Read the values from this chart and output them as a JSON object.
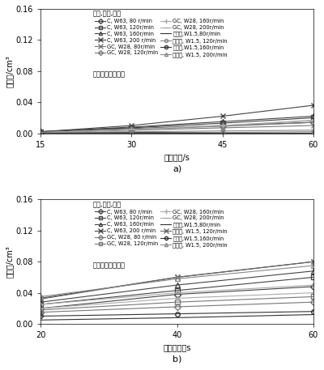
{
  "chart_a": {
    "title": "磨料,粒度,转速",
    "xlabel": "研磨时间/s",
    "ylabel": "研磨量/cm³",
    "workpiece": "工件材料：氧化铝",
    "xdata": [
      15,
      30,
      45,
      60
    ],
    "ylim": [
      0,
      0.16
    ],
    "yticks": [
      0.0,
      0.04,
      0.08,
      0.12,
      0.16
    ],
    "xlim": [
      15,
      60
    ],
    "xticks": [
      15,
      30,
      45,
      60
    ],
    "series": [
      {
        "label": "C, W63, 80 r/min",
        "y": [
          0.002,
          0.006,
          0.01,
          0.014
        ],
        "color": "#444444",
        "marker": "D",
        "ms": 4,
        "lw": 0.8,
        "mfc": "none"
      },
      {
        "label": "C, W63, 120r/min",
        "y": [
          0.002,
          0.007,
          0.013,
          0.02
        ],
        "color": "#444444",
        "marker": "s",
        "ms": 4,
        "lw": 0.8,
        "mfc": "none"
      },
      {
        "label": "C, W63, 160r/min",
        "y": [
          0.002,
          0.008,
          0.015,
          0.022
        ],
        "color": "#444444",
        "marker": "^",
        "ms": 4,
        "lw": 0.8,
        "mfc": "none"
      },
      {
        "label": "C, W63, 200 r/min",
        "y": [
          0.002,
          0.01,
          0.022,
          0.036
        ],
        "color": "#444444",
        "marker": "x",
        "ms": 5,
        "lw": 0.8,
        "mfc": "none"
      },
      {
        "label": "GC, W28, 80r/min",
        "y": [
          0.001,
          0.004,
          0.007,
          0.01
        ],
        "color": "#777777",
        "marker": "x",
        "ms": 5,
        "lw": 0.8,
        "mfc": "none"
      },
      {
        "label": "GC, W28, 120r/min",
        "y": [
          0.001,
          0.005,
          0.009,
          0.014
        ],
        "color": "#777777",
        "marker": "D",
        "ms": 4,
        "lw": 0.8,
        "mfc": "none"
      },
      {
        "label": "GC, W28, 160r/min",
        "y": [
          0.001,
          0.005,
          0.01,
          0.016
        ],
        "color": "#aaaaaa",
        "marker": "+",
        "ms": 5,
        "lw": 0.8,
        "mfc": "none"
      },
      {
        "label": "GC, W28, 200r/min",
        "y": [
          0.001,
          0.005,
          0.01,
          0.017
        ],
        "color": "#aaaaaa",
        "marker": "_",
        "ms": 5,
        "lw": 0.8,
        "mfc": "none"
      },
      {
        "label": "金刚石,W1.5,80r/min",
        "y": [
          0.001,
          0.001,
          0.001,
          0.001
        ],
        "color": "#333333",
        "marker": "",
        "ms": 4,
        "lw": 0.8,
        "mfc": "none"
      },
      {
        "label": "金刚石, W1.5, 120r/min",
        "y": [
          0.001,
          0.001,
          0.001,
          0.002
        ],
        "color": "#888888",
        "marker": "o",
        "ms": 4,
        "lw": 0.8,
        "mfc": "none"
      },
      {
        "label": "金刚石,W1.5,160r/min",
        "y": [
          0.001,
          0.001,
          0.0,
          0.0
        ],
        "color": "#333333",
        "marker": "o",
        "ms": 4,
        "lw": 0.8,
        "mfc": "none"
      },
      {
        "label": "金刚石, W1.5, 200r/min",
        "y": [
          0.001,
          0.002,
          0.003,
          0.004
        ],
        "color": "#888888",
        "marker": "^",
        "ms": 4,
        "lw": 0.8,
        "mfc": "none"
      }
    ]
  },
  "chart_b": {
    "title": "磨料,粒度,转速",
    "xlabel": "研磨时间／s",
    "ylabel": "研磨量/cm³",
    "workpiece": "工件材料：钛酸钡",
    "xdata": [
      20,
      40,
      60
    ],
    "ylim": [
      0,
      0.16
    ],
    "yticks": [
      0.0,
      0.04,
      0.08,
      0.12,
      0.16
    ],
    "xlim": [
      20,
      60
    ],
    "xticks": [
      20,
      40,
      60
    ],
    "series": [
      {
        "label": "C, W63, 80 r/min",
        "y": [
          0.02,
          0.038,
          0.048
        ],
        "color": "#444444",
        "marker": "D",
        "ms": 4,
        "lw": 0.8,
        "mfc": "none"
      },
      {
        "label": "C, W63, 120r/min",
        "y": [
          0.025,
          0.043,
          0.06
        ],
        "color": "#444444",
        "marker": "s",
        "ms": 4,
        "lw": 0.8,
        "mfc": "none"
      },
      {
        "label": "C, W63, 160r/min",
        "y": [
          0.028,
          0.05,
          0.068
        ],
        "color": "#444444",
        "marker": "^",
        "ms": 4,
        "lw": 0.8,
        "mfc": "none"
      },
      {
        "label": "C, W63, 200 r/min",
        "y": [
          0.033,
          0.06,
          0.08
        ],
        "color": "#444444",
        "marker": "x",
        "ms": 5,
        "lw": 0.8,
        "mfc": "none"
      },
      {
        "label": "GC, W28, 80 r/min",
        "y": [
          0.015,
          0.022,
          0.028
        ],
        "color": "#777777",
        "marker": "D",
        "ms": 4,
        "lw": 0.8,
        "mfc": "none"
      },
      {
        "label": "GC, W28, 120r/min",
        "y": [
          0.018,
          0.028,
          0.035
        ],
        "color": "#777777",
        "marker": "s",
        "ms": 4,
        "lw": 0.8,
        "mfc": "none"
      },
      {
        "label": "GC, W28, 160r/min",
        "y": [
          0.02,
          0.033,
          0.04
        ],
        "color": "#aaaaaa",
        "marker": "+",
        "ms": 5,
        "lw": 0.8,
        "mfc": "none"
      },
      {
        "label": "GC, W28, 200r/min",
        "y": [
          0.025,
          0.04,
          0.05
        ],
        "color": "#aaaaaa",
        "marker": "_",
        "ms": 5,
        "lw": 0.8,
        "mfc": "none"
      },
      {
        "label": "金刚石,W1.5,80r/min",
        "y": [
          0.005,
          0.008,
          0.012
        ],
        "color": "#333333",
        "marker": "",
        "ms": 4,
        "lw": 0.8,
        "mfc": "none"
      },
      {
        "label": "金刚石, W1.5, 120r/min",
        "y": [
          0.032,
          0.06,
          0.08
        ],
        "color": "#666666",
        "marker": "x",
        "ms": 5,
        "lw": 0.8,
        "mfc": "none"
      },
      {
        "label": "金刚石,W1.5,160r/min",
        "y": [
          0.01,
          0.013,
          0.016
        ],
        "color": "#333333",
        "marker": "o",
        "ms": 4,
        "lw": 0.8,
        "mfc": "none"
      },
      {
        "label": "金刚石, W1.5, 200r/min",
        "y": [
          0.035,
          0.058,
          0.075
        ],
        "color": "#888888",
        "marker": "^",
        "ms": 4,
        "lw": 0.8,
        "mfc": "none"
      }
    ]
  }
}
